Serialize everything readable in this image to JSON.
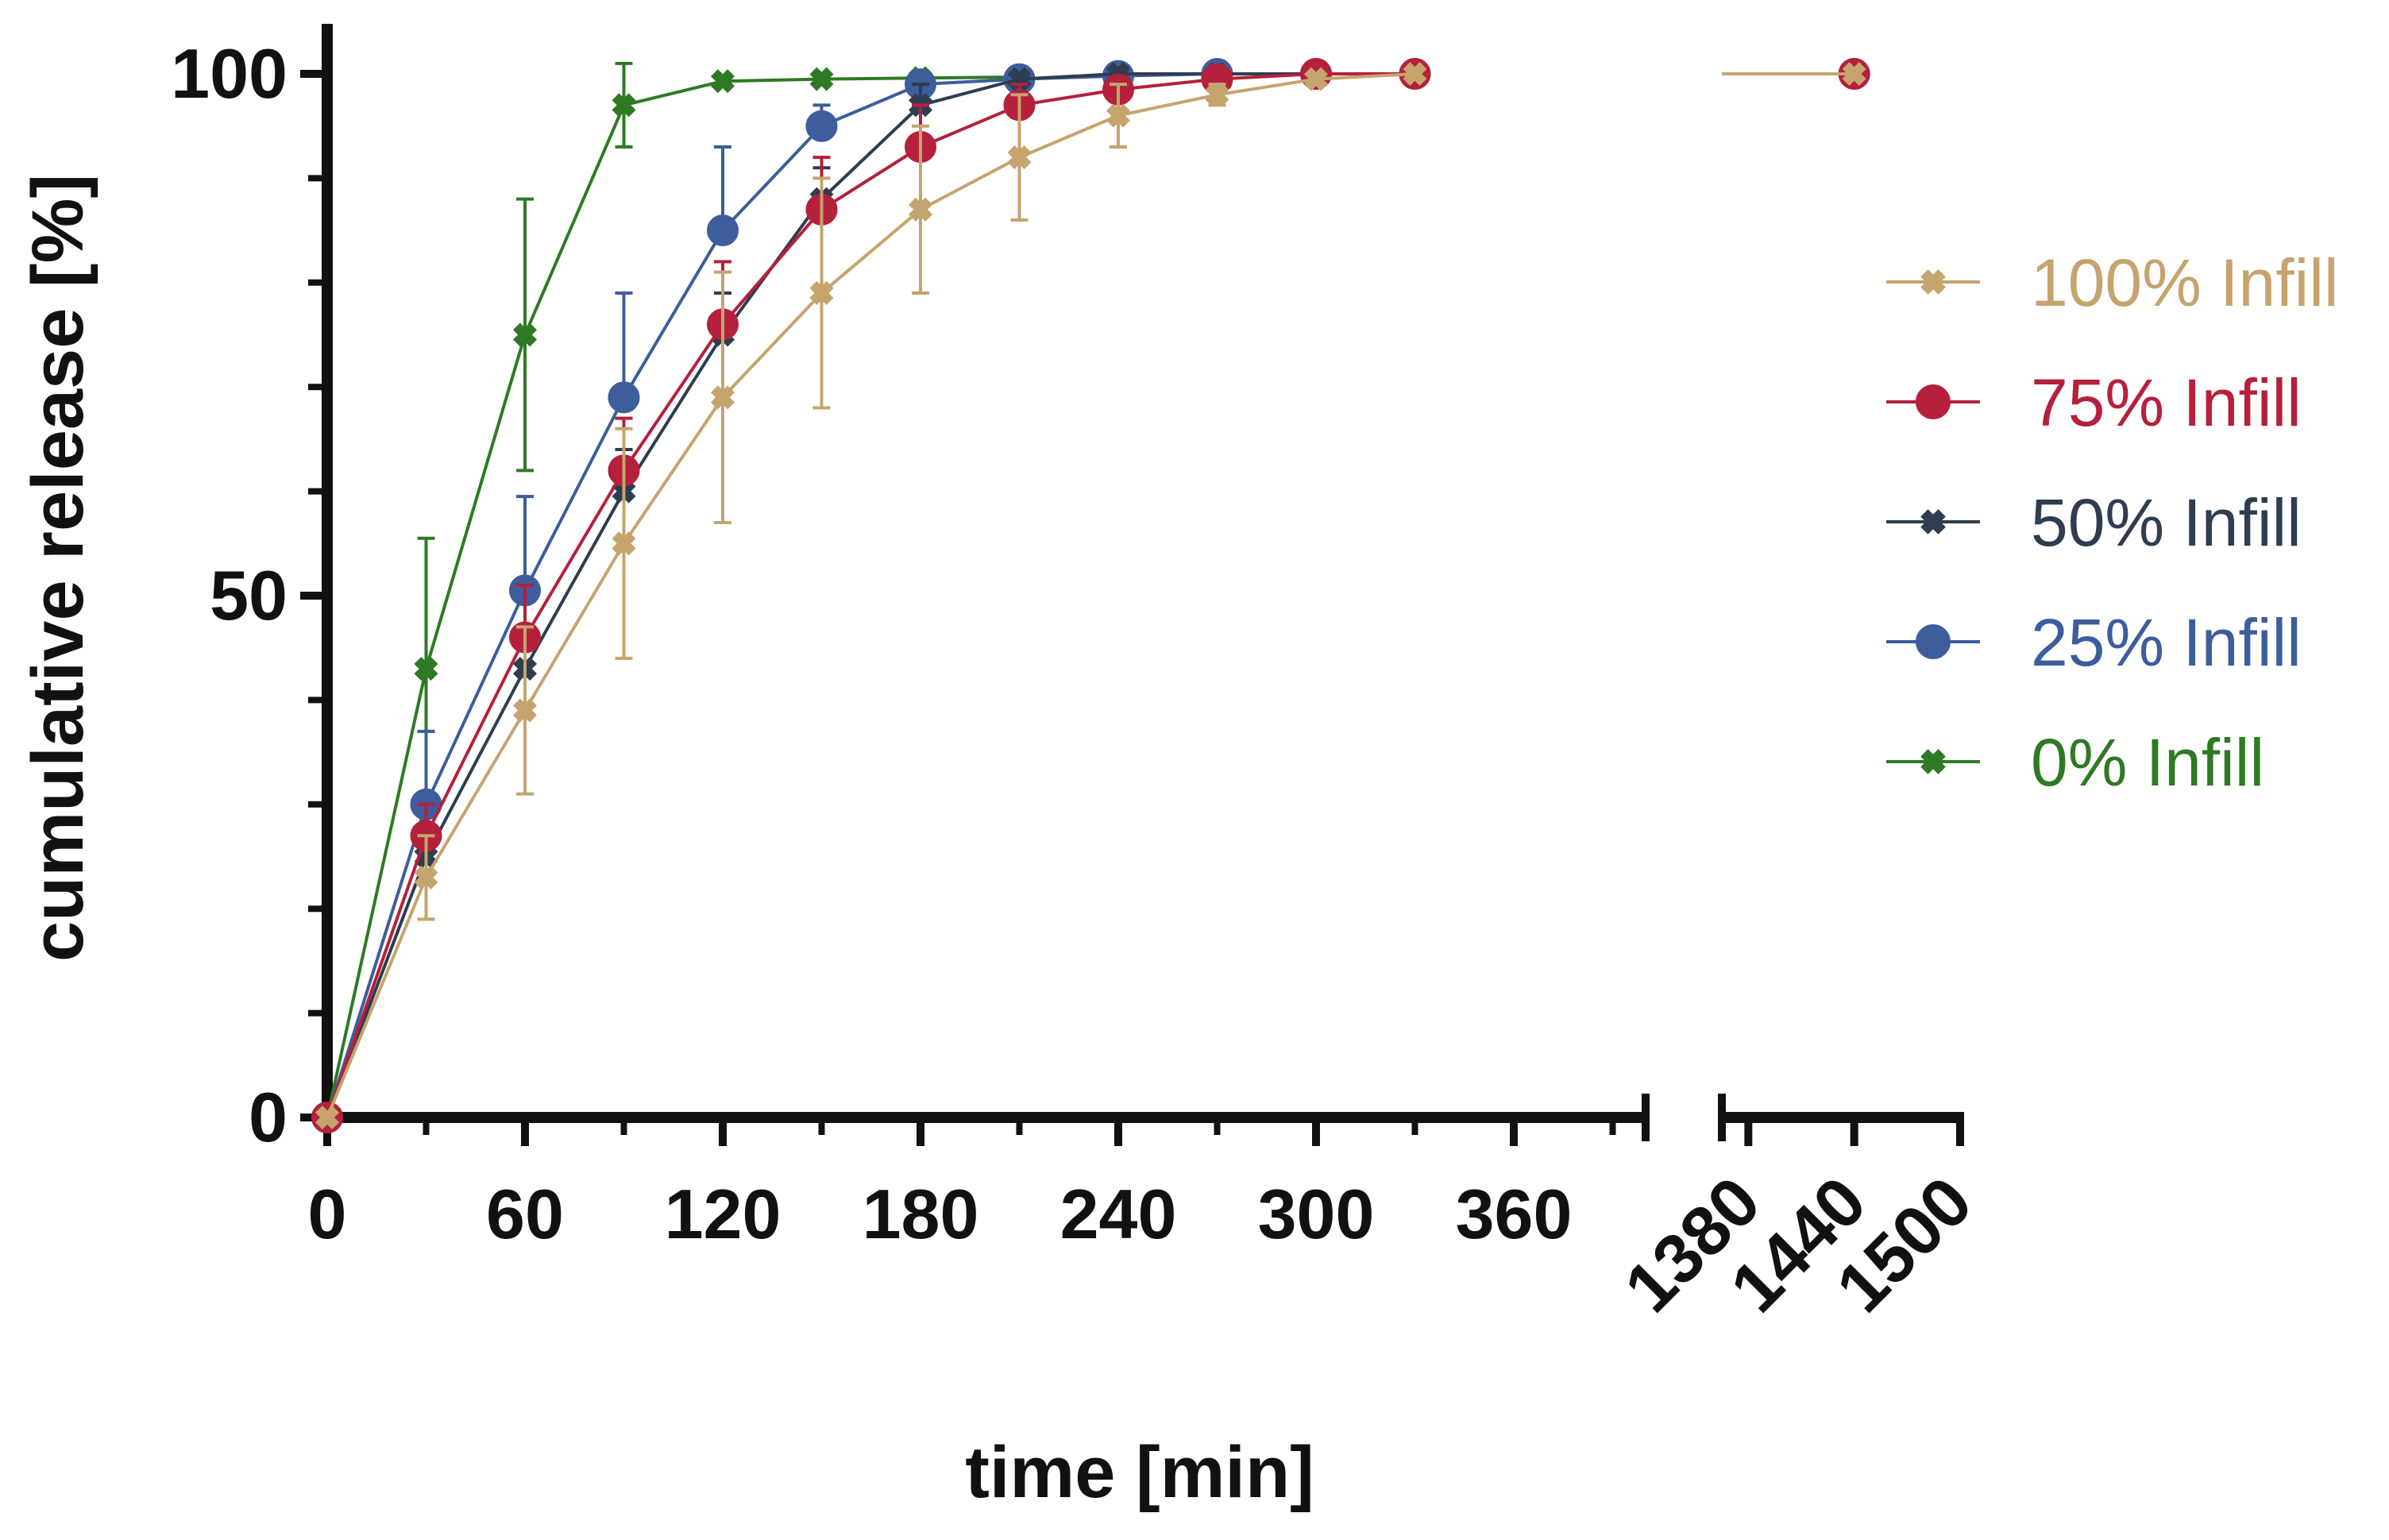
{
  "chart_data": {
    "type": "line",
    "xlabel": "time [min]",
    "ylabel": "cumulative release [%]",
    "ylim": [
      0,
      100
    ],
    "yticks": [
      "0",
      "50",
      "100"
    ],
    "x_segments": [
      {
        "range": [
          0,
          400
        ],
        "ticks": [
          "0",
          "60",
          "120",
          "180",
          "240",
          "300",
          "360"
        ]
      },
      {
        "range": [
          1365,
          1500
        ],
        "ticks": [
          "1380",
          "1440",
          "1500"
        ]
      }
    ],
    "grid": false,
    "legend_position": "right",
    "error_bars": true,
    "series": [
      {
        "name": "100% Infill",
        "color": "#c5a46e",
        "marker": "x",
        "x": [
          0,
          30,
          60,
          90,
          120,
          150,
          180,
          210,
          240,
          270,
          300,
          330,
          1440
        ],
        "y": [
          0,
          23,
          39,
          55,
          69,
          79,
          87,
          92,
          96,
          98,
          99.5,
          100,
          100
        ],
        "err": [
          0,
          4,
          8,
          11,
          12,
          11,
          8,
          6,
          3,
          1,
          0.5,
          0,
          0
        ]
      },
      {
        "name": "75% Infill",
        "color": "#b5203c",
        "marker": "circle",
        "x": [
          0,
          30,
          60,
          90,
          120,
          150,
          180,
          210,
          240,
          270,
          300,
          330,
          1440
        ],
        "y": [
          0,
          27,
          46,
          62,
          76,
          87,
          93,
          97,
          98.5,
          99.5,
          100,
          100,
          100
        ],
        "err": [
          0,
          3,
          5,
          5,
          6,
          5,
          4,
          2,
          1,
          0.5,
          0,
          0,
          0
        ]
      },
      {
        "name": "50% Infill",
        "color": "#2e3d4f",
        "marker": "x",
        "x": [
          0,
          30,
          60,
          90,
          120,
          150,
          180,
          210,
          240,
          270,
          300,
          330,
          1440
        ],
        "y": [
          0,
          25,
          43,
          60,
          75,
          88,
          97,
          99.5,
          100,
          100,
          100,
          100,
          100
        ],
        "err": [
          0,
          2,
          3,
          4,
          4,
          3,
          2,
          0.5,
          0,
          0,
          0,
          0,
          0
        ]
      },
      {
        "name": "25% Infill",
        "color": "#3d5d9c",
        "marker": "circle",
        "x": [
          0,
          30,
          60,
          90,
          120,
          150,
          180,
          210,
          240,
          270,
          300,
          330,
          1440
        ],
        "y": [
          0,
          30,
          50.5,
          69,
          85,
          95,
          99,
          99.5,
          99.8,
          100,
          100,
          100,
          100
        ],
        "err": [
          0,
          7,
          9,
          10,
          8,
          2,
          0.5,
          0,
          0,
          0,
          0,
          0,
          0
        ]
      },
      {
        "name": "0% Infill",
        "color": "#2e7a24",
        "marker": "x",
        "x": [
          0,
          30,
          60,
          90,
          120,
          150,
          180,
          210
        ],
        "y": [
          0,
          43,
          75,
          97,
          99.3,
          99.5,
          99.6,
          99.7
        ],
        "err": [
          0,
          12.5,
          13,
          4,
          0.5,
          0,
          0,
          0
        ]
      }
    ]
  }
}
